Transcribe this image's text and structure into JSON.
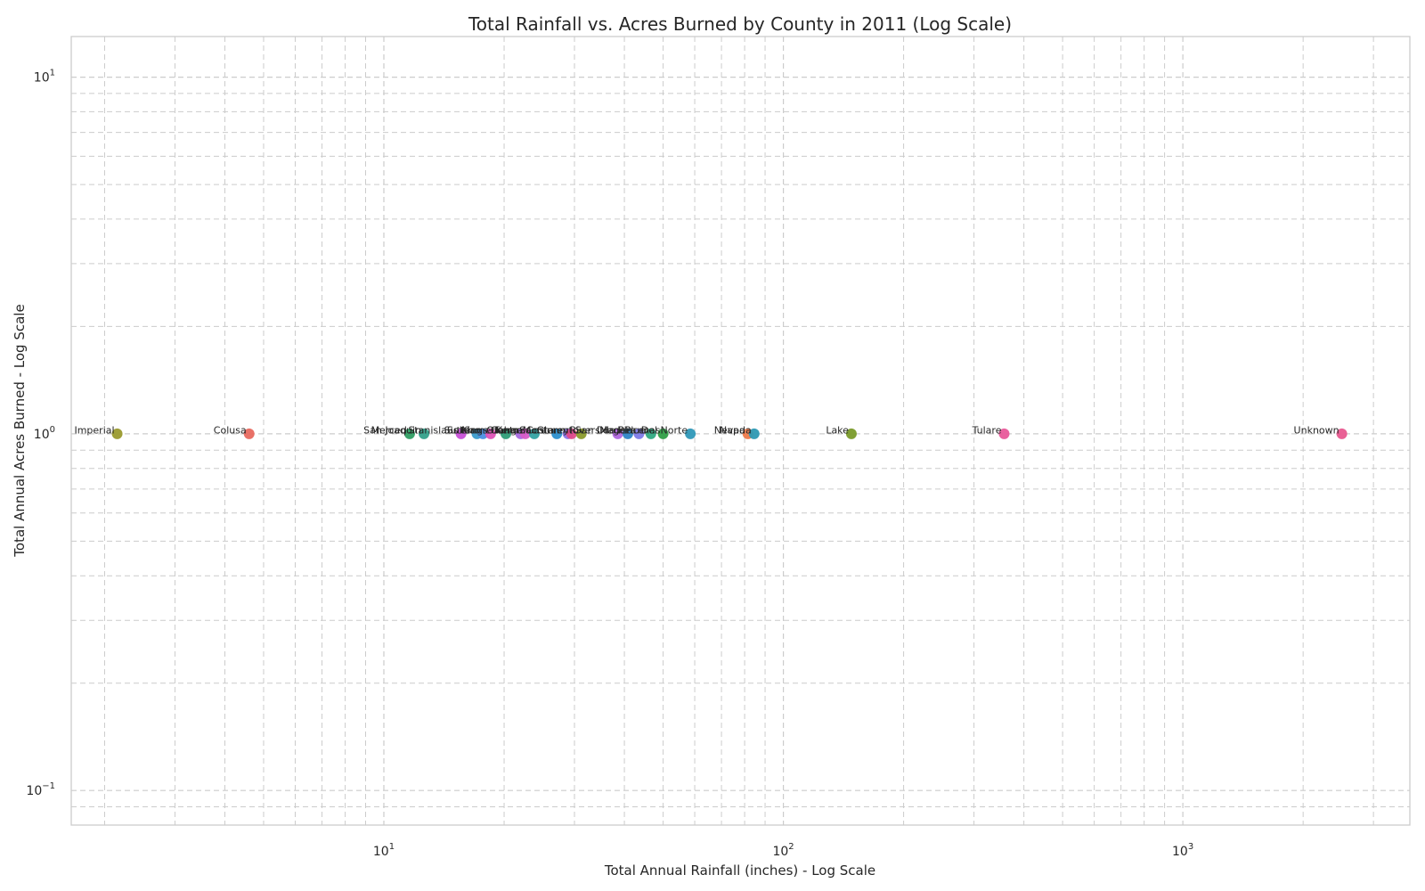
{
  "chart_data": {
    "type": "scatter",
    "title": "Total Rainfall vs. Acres Burned by County in 2011 (Log Scale)",
    "xlabel": "Total Annual Rainfall (inches) - Log Scale",
    "ylabel": "Total Annual Acres Burned - Log Scale",
    "x_scale": "log",
    "y_scale": "log",
    "xlim": [
      1.65,
      3700
    ],
    "ylim": [
      0.08,
      13
    ],
    "x_ticks": [
      {
        "value": 10,
        "base": "10",
        "exp": "1"
      },
      {
        "value": 100,
        "base": "10",
        "exp": "2"
      },
      {
        "value": 1000,
        "base": "10",
        "exp": "3"
      }
    ],
    "y_ticks": [
      {
        "value": 0.1,
        "base": "10",
        "exp": "−1"
      },
      {
        "value": 1,
        "base": "10",
        "exp": "0"
      },
      {
        "value": 10,
        "base": "10",
        "exp": "1"
      }
    ],
    "grid": true,
    "points": [
      {
        "label": "Imperial",
        "x": 2.15,
        "y": 1,
        "color": "#9a9a2e"
      },
      {
        "label": "Colusa",
        "x": 4.6,
        "y": 1,
        "color": "#e8695f"
      },
      {
        "label": "Merced",
        "x": 11.6,
        "y": 1,
        "color": "#2f9e63"
      },
      {
        "label": "San Joaquin",
        "x": 12.6,
        "y": 1,
        "color": "#34a08a"
      },
      {
        "label": "Stanislaus",
        "x": 15.6,
        "y": 1,
        "color": "#c84fd8"
      },
      {
        "label": "Sutter",
        "x": 17.1,
        "y": 1,
        "color": "#3a9bcc"
      },
      {
        "label": "Solano",
        "x": 17.7,
        "y": 1,
        "color": "#4b8fe0"
      },
      {
        "label": "Kings",
        "x": 18.5,
        "y": 1,
        "color": "#e052b8"
      },
      {
        "label": "Alameda",
        "x": 20.2,
        "y": 1,
        "color": "#2d9d77"
      },
      {
        "label": "Kern",
        "x": 22.0,
        "y": 1,
        "color": "#a86ae0"
      },
      {
        "label": "Orange",
        "x": 22.6,
        "y": 1,
        "color": "#d85cc8"
      },
      {
        "label": "Tehama",
        "x": 23.8,
        "y": 1,
        "color": "#31a3a3"
      },
      {
        "label": "Contra Costa",
        "x": 27.1,
        "y": 1,
        "color": "#2a8fcf"
      },
      {
        "label": "Glenn",
        "x": 28.9,
        "y": 1,
        "color": "#8d74e6"
      },
      {
        "label": "Monterey",
        "x": 29.5,
        "y": 1,
        "color": "#e04a8a"
      },
      {
        "label": "Sacramento",
        "x": 31.2,
        "y": 1,
        "color": "#8a9a2b"
      },
      {
        "label": "Riverside",
        "x": 38.5,
        "y": 1,
        "color": "#b066de"
      },
      {
        "label": "San Diego",
        "x": 40.8,
        "y": 1,
        "color": "#2d84c6"
      },
      {
        "label": "Madera",
        "x": 43.5,
        "y": 1,
        "color": "#7d7ae8"
      },
      {
        "label": "Placer",
        "x": 46.6,
        "y": 1,
        "color": "#2faa82"
      },
      {
        "label": "Plumas",
        "x": 50.0,
        "y": 1,
        "color": "#2f9e46"
      },
      {
        "label": "Del Norte",
        "x": 58.5,
        "y": 1,
        "color": "#2f98b8"
      },
      {
        "label": "Napa",
        "x": 81.5,
        "y": 1,
        "color": "#ee7a4a"
      },
      {
        "label": "Nevada",
        "x": 84.5,
        "y": 1,
        "color": "#2d99b3"
      },
      {
        "label": "Lake",
        "x": 148,
        "y": 1,
        "color": "#7a9b2a"
      },
      {
        "label": "Tulare",
        "x": 357,
        "y": 1,
        "color": "#e85a9a"
      },
      {
        "label": "Unknown",
        "x": 2500,
        "y": 1,
        "color": "#e8588f"
      }
    ]
  }
}
